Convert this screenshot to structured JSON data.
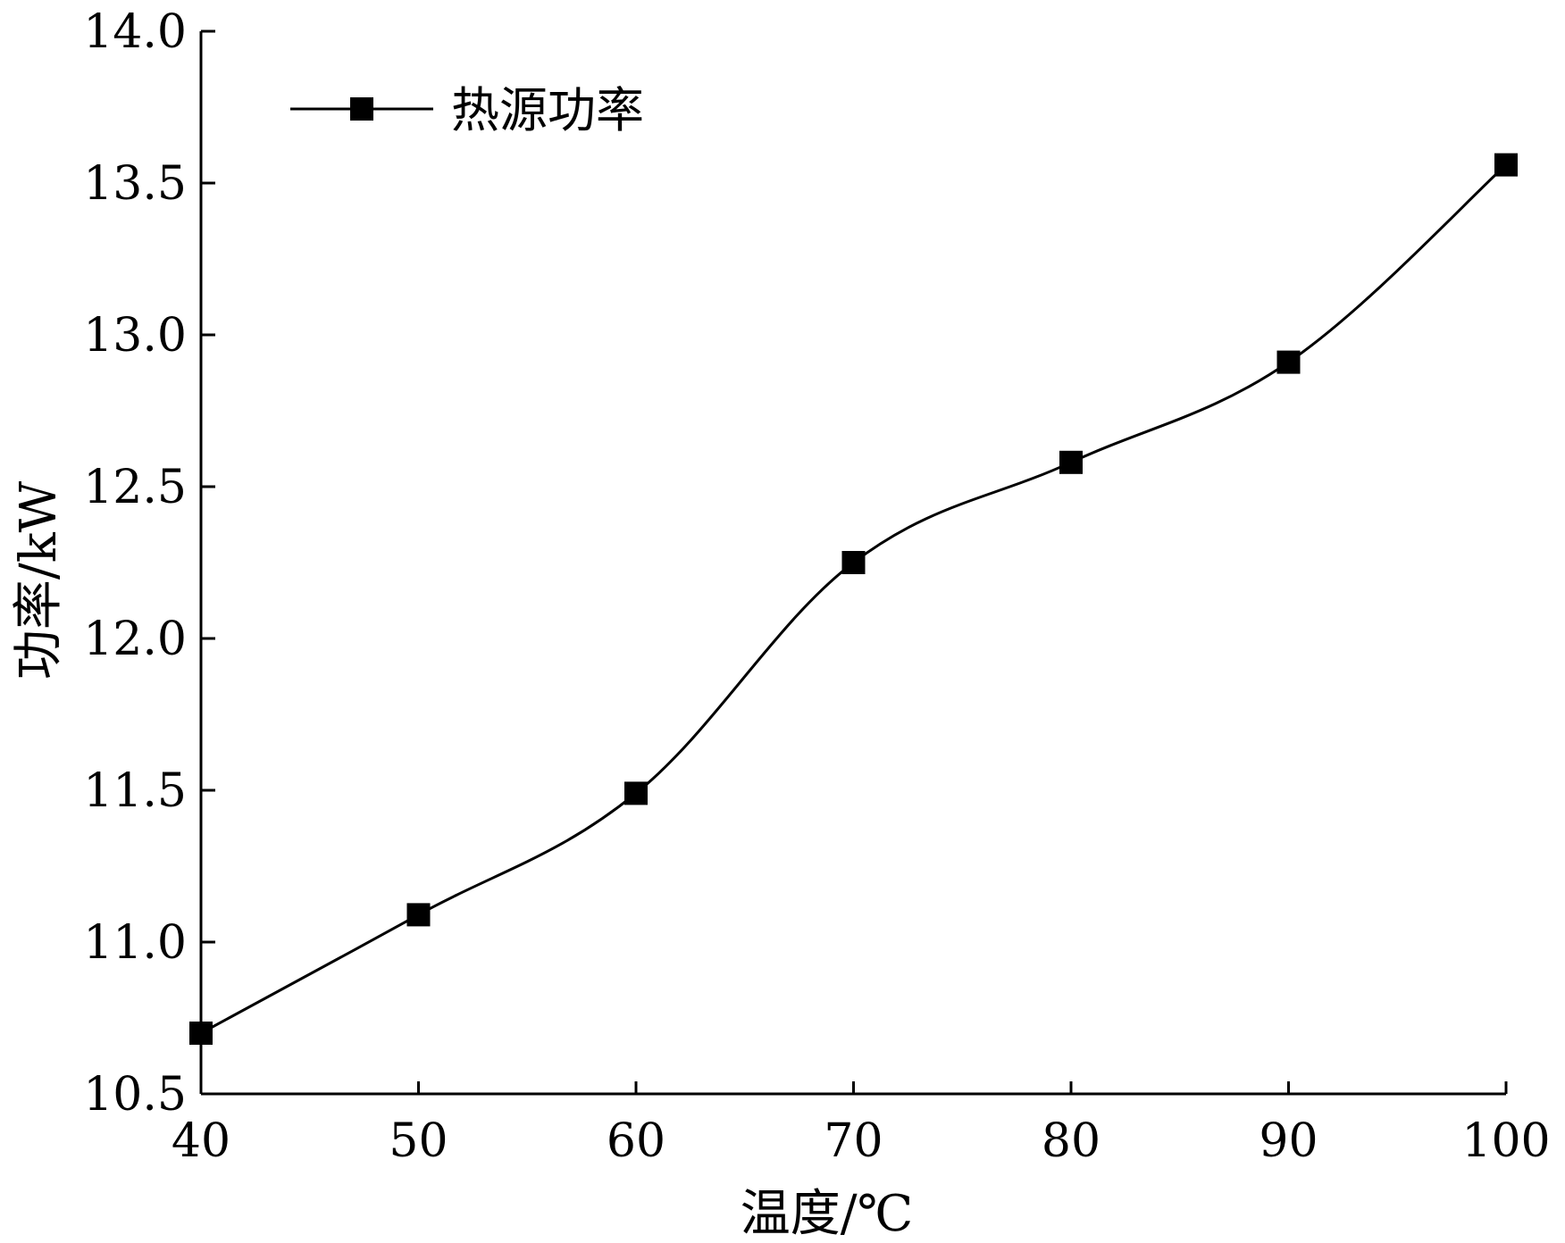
{
  "chart_data": {
    "type": "line",
    "xlabel": "温度/℃",
    "ylabel": "功率/kW",
    "x": [
      40,
      50,
      60,
      70,
      80,
      90,
      100
    ],
    "x_ticks": [
      "40",
      "50",
      "60",
      "70",
      "80",
      "90",
      "100"
    ],
    "y_ticks": [
      "10.5",
      "11.0",
      "11.5",
      "12.0",
      "12.5",
      "13.0",
      "13.5",
      "14.0"
    ],
    "xlim": [
      40,
      100
    ],
    "ylim": [
      10.5,
      14.0
    ],
    "grid": false,
    "legend_position": "top-left",
    "series": [
      {
        "name": "热源功率",
        "marker": "square",
        "color": "#000000",
        "values": [
          10.7,
          11.09,
          11.49,
          12.25,
          12.58,
          12.91,
          13.56
        ]
      }
    ]
  }
}
